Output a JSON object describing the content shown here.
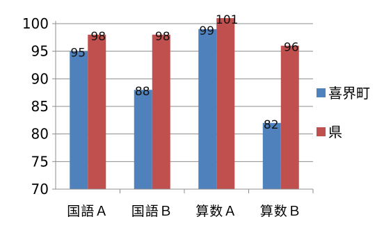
{
  "chart_data": {
    "type": "bar",
    "categories": [
      "国語Ａ",
      "国語Ｂ",
      "算数Ａ",
      "算数Ｂ"
    ],
    "series": [
      {
        "name": "喜界町",
        "values": [
          95,
          88,
          99,
          82
        ],
        "labels": [
          "95",
          "88",
          "99",
          "82"
        ],
        "color": "#4f81bd"
      },
      {
        "name": "県",
        "values": [
          98,
          98,
          101,
          96
        ],
        "labels": [
          "98",
          "98",
          "101",
          "96"
        ],
        "color": "#c0504d"
      }
    ],
    "ylim": [
      70,
      100
    ],
    "yticks": [
      "70",
      "75",
      "80",
      "85",
      "90",
      "95",
      "100"
    ],
    "grid": true,
    "legend_position": "right",
    "title": "",
    "xlabel": "",
    "ylabel": ""
  }
}
